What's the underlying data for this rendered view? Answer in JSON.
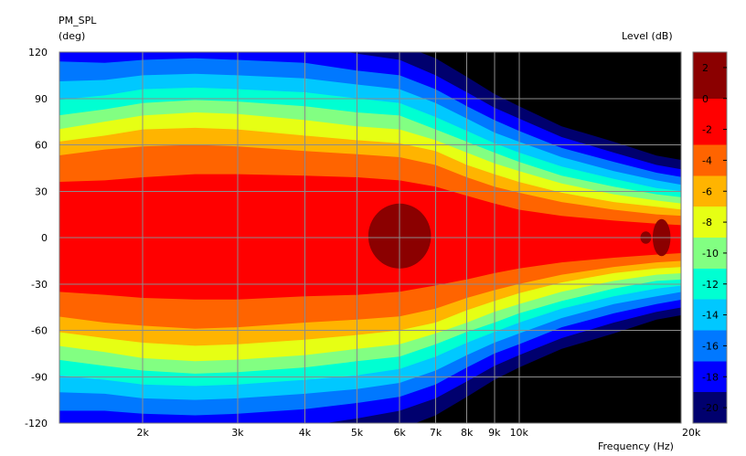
{
  "chart_data": {
    "type": "heatmap",
    "subtype": "polar directivity contour",
    "title": "PM_SPL",
    "ylabel": "(deg)",
    "xlabel": "Frequency  (Hz)",
    "colorbar_label": "Level  (dB)",
    "x_scale": "log",
    "xlim": [
      1400,
      20000
    ],
    "ylim": [
      -120,
      120
    ],
    "grid": true,
    "x_ticks": [
      {
        "value": 2000,
        "label": "2k"
      },
      {
        "value": 3000,
        "label": "3k"
      },
      {
        "value": 4000,
        "label": "4k"
      },
      {
        "value": 5000,
        "label": "5k"
      },
      {
        "value": 6000,
        "label": "6k"
      },
      {
        "value": 7000,
        "label": "7k"
      },
      {
        "value": 8000,
        "label": "8k"
      },
      {
        "value": 9000,
        "label": "9k"
      },
      {
        "value": 10000,
        "label": "10k"
      },
      {
        "value": 20000,
        "label": "20k"
      }
    ],
    "y_ticks": [
      {
        "value": 120,
        "label": "120"
      },
      {
        "value": 90,
        "label": "90"
      },
      {
        "value": 60,
        "label": "60"
      },
      {
        "value": 30,
        "label": "30"
      },
      {
        "value": 0,
        "label": "0"
      },
      {
        "value": -30,
        "label": "-30"
      },
      {
        "value": -60,
        "label": "-60"
      },
      {
        "value": -90,
        "label": "-90"
      },
      {
        "value": -120,
        "label": "-120"
      }
    ],
    "colorbar": {
      "min": -21,
      "max": 3,
      "ticks": [
        {
          "value": 2,
          "label": "2"
        },
        {
          "value": 0,
          "label": "0"
        },
        {
          "value": -2,
          "label": "-2"
        },
        {
          "value": -4,
          "label": "-4"
        },
        {
          "value": -6,
          "label": "-6"
        },
        {
          "value": -8,
          "label": "-8"
        },
        {
          "value": -10,
          "label": "-10"
        },
        {
          "value": -12,
          "label": "-12"
        },
        {
          "value": -14,
          "label": "-14"
        },
        {
          "value": -16,
          "label": "-16"
        },
        {
          "value": -18,
          "label": "-18"
        },
        {
          "value": -20,
          "label": "-20"
        }
      ],
      "bands": [
        {
          "from": 0,
          "to": 3,
          "color": "#8b0000"
        },
        {
          "from": -3,
          "to": 0,
          "color": "#ff0000"
        },
        {
          "from": -5,
          "to": -3,
          "color": "#ff6400"
        },
        {
          "from": -7,
          "to": -5,
          "color": "#ffb400"
        },
        {
          "from": -9,
          "to": -7,
          "color": "#e6ff14"
        },
        {
          "from": -11,
          "to": -9,
          "color": "#82ff82"
        },
        {
          "from": -13,
          "to": -11,
          "color": "#00ffd2"
        },
        {
          "from": -15,
          "to": -13,
          "color": "#00c8ff"
        },
        {
          "from": -17,
          "to": -15,
          "color": "#0078ff"
        },
        {
          "from": -19,
          "to": -17,
          "color": "#0000ff"
        },
        {
          "from": -21,
          "to": -19,
          "color": "#00006e"
        }
      ],
      "below_color": "#000000"
    },
    "contour_levels": [
      0,
      -3,
      -5,
      -7,
      -9,
      -11,
      -13,
      -15,
      -17,
      -19,
      -21
    ],
    "contours_deg": {
      "x": [
        1400,
        1700,
        2000,
        2500,
        3000,
        4000,
        5000,
        6000,
        7000,
        8000,
        9000,
        10000,
        12000,
        15000,
        18000,
        20000
      ],
      "upper": [
        [
          0,
          0,
          0,
          0,
          0,
          0,
          0,
          0,
          0,
          0,
          0,
          0,
          0,
          0,
          0,
          0
        ],
        [
          36,
          37,
          39,
          41,
          41,
          40,
          39,
          37,
          33,
          27,
          22,
          18,
          14,
          11,
          9,
          8
        ],
        [
          53,
          57,
          59,
          60,
          59,
          56,
          54,
          52,
          47,
          39,
          33,
          29,
          23,
          18,
          15,
          14
        ],
        [
          62,
          66,
          70,
          71,
          70,
          66,
          63,
          61,
          56,
          47,
          41,
          36,
          29,
          23,
          20,
          18
        ],
        [
          70,
          75,
          79,
          81,
          80,
          76,
          72,
          70,
          63,
          55,
          48,
          43,
          35,
          28,
          24,
          22
        ],
        [
          79,
          83,
          87,
          89,
          88,
          85,
          81,
          79,
          70,
          62,
          55,
          49,
          40,
          33,
          28,
          26
        ],
        [
          89,
          92,
          96,
          97,
          96,
          94,
          90,
          87,
          78,
          69,
          61,
          55,
          46,
          38,
          32,
          30
        ],
        [
          101,
          102,
          105,
          106,
          105,
          103,
          99,
          96,
          87,
          77,
          68,
          62,
          52,
          43,
          37,
          34
        ],
        [
          114,
          113,
          115,
          116,
          115,
          113,
          108,
          105,
          96,
          85,
          76,
          69,
          58,
          49,
          42,
          39
        ],
        [
          125,
          125,
          125,
          125,
          125,
          124,
          119,
          115,
          105,
          94,
          84,
          77,
          65,
          55,
          47,
          44
        ],
        [
          126,
          126,
          126,
          126,
          126,
          126,
          126,
          125,
          116,
          104,
          93,
          85,
          72,
          62,
          53,
          50
        ]
      ],
      "lower": [
        [
          0,
          0,
          0,
          0,
          0,
          0,
          0,
          0,
          0,
          0,
          0,
          0,
          0,
          0,
          0,
          0
        ],
        [
          -35,
          -37,
          -39,
          -40,
          -40,
          -38,
          -37,
          -35,
          -31,
          -27,
          -23,
          -20,
          -16,
          -13,
          -11,
          -10
        ],
        [
          -51,
          -55,
          -57,
          -59,
          -58,
          -55,
          -53,
          -51,
          -46,
          -39,
          -34,
          -30,
          -24,
          -19,
          -16,
          -15
        ],
        [
          -61,
          -65,
          -68,
          -70,
          -69,
          -66,
          -63,
          -60,
          -55,
          -47,
          -41,
          -36,
          -29,
          -23,
          -20,
          -19
        ],
        [
          -70,
          -74,
          -78,
          -80,
          -79,
          -76,
          -72,
          -69,
          -62,
          -55,
          -48,
          -43,
          -35,
          -28,
          -24,
          -23
        ],
        [
          -79,
          -83,
          -86,
          -88,
          -87,
          -84,
          -80,
          -77,
          -69,
          -61,
          -55,
          -49,
          -41,
          -33,
          -28,
          -27
        ],
        [
          -89,
          -92,
          -95,
          -96,
          -95,
          -92,
          -89,
          -85,
          -77,
          -68,
          -61,
          -55,
          -46,
          -38,
          -33,
          -31
        ],
        [
          -100,
          -101,
          -104,
          -105,
          -104,
          -101,
          -98,
          -94,
          -86,
          -76,
          -68,
          -62,
          -52,
          -43,
          -38,
          -35
        ],
        [
          -112,
          -112,
          -114,
          -115,
          -114,
          -111,
          -107,
          -103,
          -95,
          -84,
          -75,
          -69,
          -58,
          -49,
          -43,
          -40
        ],
        [
          -125,
          -125,
          -125,
          -125,
          -125,
          -122,
          -117,
          -112,
          -104,
          -93,
          -83,
          -76,
          -65,
          -55,
          -48,
          -45
        ],
        [
          -126,
          -126,
          -126,
          -126,
          -126,
          -126,
          -126,
          -124,
          -115,
          -103,
          -92,
          -84,
          -72,
          -62,
          -53,
          -50
        ]
      ]
    },
    "peak_regions": [
      {
        "center_hz": 6000,
        "half_width_hz": 800,
        "deg_from": -20,
        "deg_to": 22,
        "level_db": 1
      },
      {
        "center_hz": 18400,
        "half_width_hz": 700,
        "deg_from": -12,
        "deg_to": 12,
        "level_db": 1
      },
      {
        "center_hz": 17200,
        "half_width_hz": 400,
        "deg_from": -4,
        "deg_to": 4,
        "level_db": 1
      }
    ]
  }
}
